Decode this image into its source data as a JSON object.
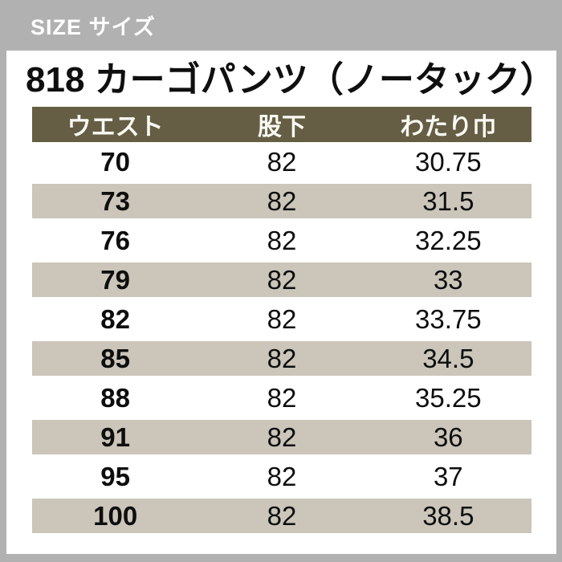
{
  "header": {
    "label": "SIZE サイズ"
  },
  "product": {
    "title": "818 カーゴパンツ（ノータック）"
  },
  "table": {
    "columns": [
      "ウエスト",
      "股下",
      "わたり巾"
    ],
    "rows": [
      [
        "70",
        "82",
        "30.75"
      ],
      [
        "73",
        "82",
        "31.5"
      ],
      [
        "76",
        "82",
        "32.25"
      ],
      [
        "79",
        "82",
        "33"
      ],
      [
        "82",
        "82",
        "33.75"
      ],
      [
        "85",
        "82",
        "34.5"
      ],
      [
        "88",
        "82",
        "35.25"
      ],
      [
        "91",
        "82",
        "36"
      ],
      [
        "95",
        "82",
        "37"
      ],
      [
        "100",
        "82",
        "38.5"
      ]
    ]
  },
  "colors": {
    "frame_gray": "#b1b1b1",
    "header_olive": "#655e44",
    "row_beige": "#cbc5ba",
    "text_black": "#0e0e0e",
    "text_white": "#ffffff"
  }
}
